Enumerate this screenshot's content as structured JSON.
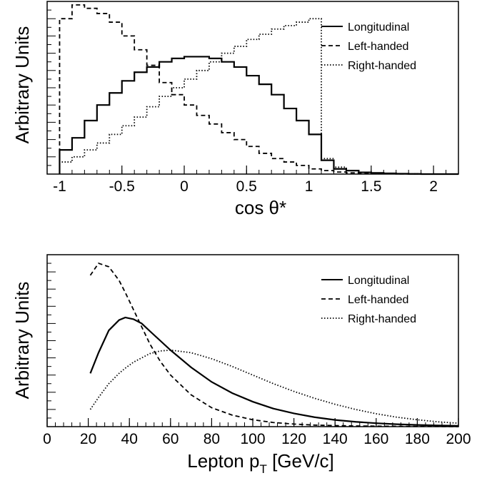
{
  "chart_data": [
    {
      "type": "line",
      "style": "step-histogram",
      "title": "",
      "xlabel": "cos θ*",
      "ylabel": "Arbitrary Units",
      "xlim": [
        -1.1,
        2.2
      ],
      "ylim": [
        0,
        1.0
      ],
      "x_ticks": [
        -1,
        -0.5,
        0,
        0.5,
        1,
        1.5,
        2
      ],
      "x_tick_labels": [
        "-1",
        "-0.5",
        "0",
        "0.5",
        "1",
        "1.5",
        "2"
      ],
      "y_tick_labels": [],
      "grid": false,
      "legend_position": "top-right",
      "bin_width": 0.1,
      "bin_edges_start": -1.0,
      "series": [
        {
          "name": "Longitudinal",
          "line_style": "solid",
          "values": [
            0.14,
            0.21,
            0.31,
            0.4,
            0.47,
            0.54,
            0.59,
            0.62,
            0.65,
            0.67,
            0.68,
            0.68,
            0.67,
            0.65,
            0.62,
            0.57,
            0.52,
            0.46,
            0.38,
            0.31,
            0.23,
            0.08,
            0.03,
            0.02,
            0.01,
            0.007,
            0.004,
            0.002,
            0.001,
            0.0,
            0.0,
            0.0
          ]
        },
        {
          "name": "Left-handed",
          "line_style": "dashed",
          "values": [
            0.9,
            0.98,
            0.96,
            0.93,
            0.88,
            0.8,
            0.72,
            0.63,
            0.53,
            0.46,
            0.4,
            0.34,
            0.29,
            0.24,
            0.2,
            0.16,
            0.12,
            0.09,
            0.07,
            0.05,
            0.03,
            0.02,
            0.012,
            0.007,
            0.005,
            0.003,
            0.002,
            0.001,
            0.001,
            0.0,
            0.0,
            0.0
          ]
        },
        {
          "name": "Right-handed",
          "line_style": "dotted",
          "values": [
            0.07,
            0.1,
            0.14,
            0.18,
            0.23,
            0.28,
            0.33,
            0.39,
            0.45,
            0.5,
            0.55,
            0.6,
            0.65,
            0.7,
            0.74,
            0.78,
            0.81,
            0.84,
            0.86,
            0.88,
            0.9,
            0.09,
            0.04,
            0.02,
            0.01,
            0.005,
            0.003,
            0.002,
            0.001,
            0.0,
            0.0,
            0.0
          ]
        }
      ]
    },
    {
      "type": "line",
      "title": "",
      "xlabel": "Lepton p_T [GeV/c]",
      "xlabel_main": "Lepton p",
      "xlabel_sub": "T",
      "xlabel_tail": " [GeV/c]",
      "ylabel": "Arbitrary Units",
      "xlim": [
        0,
        200
      ],
      "ylim": [
        0,
        1.0
      ],
      "x_ticks": [
        0,
        20,
        40,
        60,
        80,
        100,
        120,
        140,
        160,
        180,
        200
      ],
      "x_tick_labels": [
        "0",
        "20",
        "40",
        "60",
        "80",
        "100",
        "120",
        "140",
        "160",
        "180",
        "200"
      ],
      "y_tick_labels": [],
      "grid": false,
      "legend_position": "top-right",
      "x": [
        21,
        25,
        30,
        35,
        38,
        42,
        46,
        50,
        55,
        60,
        70,
        80,
        90,
        100,
        110,
        120,
        130,
        140,
        150,
        160,
        170,
        180,
        190,
        200
      ],
      "series": [
        {
          "name": "Longitudinal",
          "line_style": "solid",
          "values": [
            0.31,
            0.43,
            0.56,
            0.62,
            0.635,
            0.625,
            0.6,
            0.555,
            0.5,
            0.445,
            0.345,
            0.26,
            0.195,
            0.145,
            0.105,
            0.077,
            0.055,
            0.039,
            0.028,
            0.02,
            0.014,
            0.01,
            0.007,
            0.005
          ]
        },
        {
          "name": "Left-handed",
          "line_style": "dashed",
          "values": [
            0.88,
            0.95,
            0.93,
            0.85,
            0.78,
            0.68,
            0.58,
            0.48,
            0.38,
            0.3,
            0.185,
            0.11,
            0.067,
            0.04,
            0.024,
            0.015,
            0.009,
            0.006,
            0.004,
            0.003,
            0.002,
            0.001,
            0.001,
            0.0
          ]
        },
        {
          "name": "Right-handed",
          "line_style": "dotted",
          "values": [
            0.1,
            0.17,
            0.25,
            0.31,
            0.34,
            0.375,
            0.4,
            0.425,
            0.44,
            0.445,
            0.43,
            0.395,
            0.35,
            0.3,
            0.25,
            0.205,
            0.165,
            0.13,
            0.1,
            0.075,
            0.055,
            0.04,
            0.028,
            0.02
          ]
        }
      ]
    }
  ]
}
